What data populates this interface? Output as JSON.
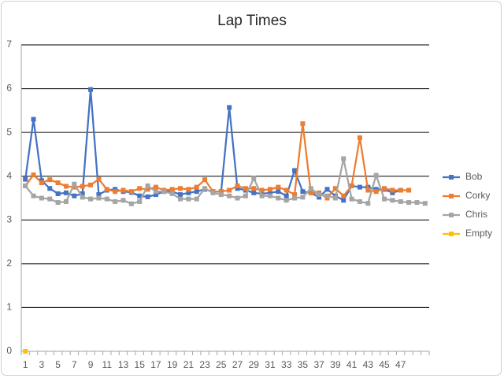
{
  "chart_data": {
    "type": "line",
    "title": "Lap Times",
    "categories": [
      1,
      null,
      3,
      null,
      5,
      null,
      7,
      null,
      9,
      null,
      11,
      null,
      13,
      null,
      15,
      null,
      17,
      null,
      19,
      null,
      21,
      null,
      23,
      null,
      25,
      null,
      27,
      null,
      29,
      null,
      31,
      null,
      33,
      null,
      35,
      null,
      37,
      null,
      39,
      null,
      41,
      null,
      43,
      null,
      45,
      null,
      47,
      null,
      null,
      null
    ],
    "series": [
      {
        "name": "Bob",
        "color": "#4472c4",
        "values": [
          3.93,
          5.3,
          3.9,
          3.72,
          3.6,
          3.62,
          3.55,
          3.6,
          5.98,
          3.58,
          3.68,
          3.7,
          3.65,
          3.63,
          3.55,
          3.53,
          3.58,
          3.65,
          3.65,
          3.58,
          3.62,
          3.65,
          3.7,
          3.65,
          3.65,
          5.57,
          3.72,
          3.68,
          3.62,
          3.6,
          3.62,
          3.65,
          3.55,
          4.13,
          3.65,
          3.62,
          3.52,
          3.7,
          3.55,
          3.45,
          3.78,
          3.75,
          3.75,
          3.7,
          3.7,
          3.62,
          3.68,
          null,
          null,
          null
        ]
      },
      {
        "name": "Corky",
        "color": "#ed7d31",
        "values": [
          3.78,
          4.03,
          3.85,
          3.92,
          3.85,
          3.77,
          3.75,
          3.77,
          3.8,
          3.93,
          3.7,
          3.65,
          3.68,
          3.65,
          3.72,
          3.7,
          3.75,
          3.68,
          3.7,
          3.72,
          3.7,
          3.75,
          3.92,
          3.65,
          3.65,
          3.68,
          3.78,
          3.72,
          3.72,
          3.68,
          3.7,
          3.75,
          3.68,
          3.58,
          5.2,
          3.62,
          3.62,
          3.5,
          3.72,
          3.55,
          3.78,
          4.88,
          3.68,
          3.65,
          3.72,
          3.68,
          3.68,
          3.68,
          null,
          null
        ]
      },
      {
        "name": "Chris",
        "color": "#a5a5a5",
        "values": [
          3.78,
          3.55,
          3.5,
          3.48,
          3.4,
          3.42,
          3.82,
          3.52,
          3.48,
          3.5,
          3.48,
          3.42,
          3.45,
          3.37,
          3.42,
          3.78,
          3.65,
          3.65,
          3.6,
          3.48,
          3.48,
          3.48,
          3.72,
          3.62,
          3.58,
          3.55,
          3.5,
          3.55,
          3.95,
          3.55,
          3.55,
          3.5,
          3.45,
          3.5,
          3.52,
          3.72,
          3.58,
          3.55,
          3.5,
          4.4,
          3.48,
          3.42,
          3.38,
          4.02,
          3.48,
          3.45,
          3.42,
          3.4,
          3.4,
          3.38
        ]
      },
      {
        "name": "Empty",
        "color": "#ffc000",
        "values": [
          0,
          null,
          null,
          null,
          null,
          null,
          null,
          null,
          null,
          null,
          null,
          null,
          null,
          null,
          null,
          null,
          null,
          null,
          null,
          null,
          null,
          null,
          null,
          null,
          null,
          null,
          null,
          null,
          null,
          null,
          null,
          null,
          null,
          null,
          null,
          null,
          null,
          null,
          null,
          null,
          null,
          null,
          null,
          null,
          null,
          null,
          null,
          null,
          null,
          null
        ]
      }
    ],
    "ylim": [
      0,
      7
    ],
    "yticks": [
      0,
      1,
      2,
      3,
      4,
      5,
      6,
      7
    ],
    "grid": true,
    "legend": "right"
  }
}
